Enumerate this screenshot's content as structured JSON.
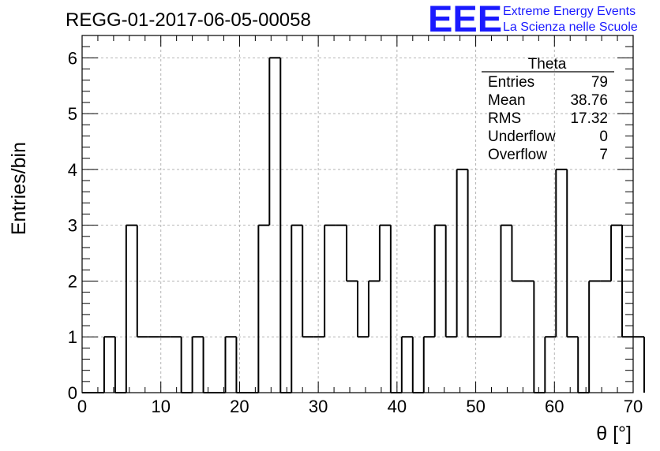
{
  "chart_data": {
    "type": "bar",
    "title": "REGG-01-2017-06-05-00058",
    "xlabel": "θ [°]",
    "ylabel": "Entries/bin",
    "xlim": [
      0,
      70
    ],
    "ylim": [
      0,
      6.4
    ],
    "x_ticks": [
      "0",
      "10",
      "20",
      "30",
      "40",
      "50",
      "60",
      "70"
    ],
    "y_ticks": [
      "0",
      "1",
      "2",
      "3",
      "4",
      "5",
      "6"
    ],
    "grid": true,
    "bin_width": 1.4,
    "bin_edges_start": 0,
    "values": [
      0,
      0,
      1,
      0,
      3,
      1,
      1,
      1,
      1,
      0,
      1,
      0,
      0,
      1,
      0,
      0,
      3,
      6,
      0,
      3,
      1,
      1,
      3,
      3,
      2,
      1,
      2,
      3,
      0,
      1,
      0,
      1,
      3,
      1,
      4,
      1,
      1,
      1,
      3,
      2,
      2,
      0,
      1,
      4,
      1,
      0,
      2,
      2,
      3,
      1,
      1
    ]
  },
  "stats_box": {
    "title": "Theta",
    "rows": [
      {
        "label": "Entries",
        "value": "79"
      },
      {
        "label": "Mean",
        "value": "38.76"
      },
      {
        "label": "RMS",
        "value": "17.32"
      },
      {
        "label": "Underflow",
        "value": "0"
      },
      {
        "label": "Overflow",
        "value": "7"
      }
    ]
  },
  "logo": {
    "mark": "EEE",
    "line1": "Extreme Energy Events",
    "line2": "La Scienza nelle Scuole",
    "color": "#1a1aff"
  }
}
